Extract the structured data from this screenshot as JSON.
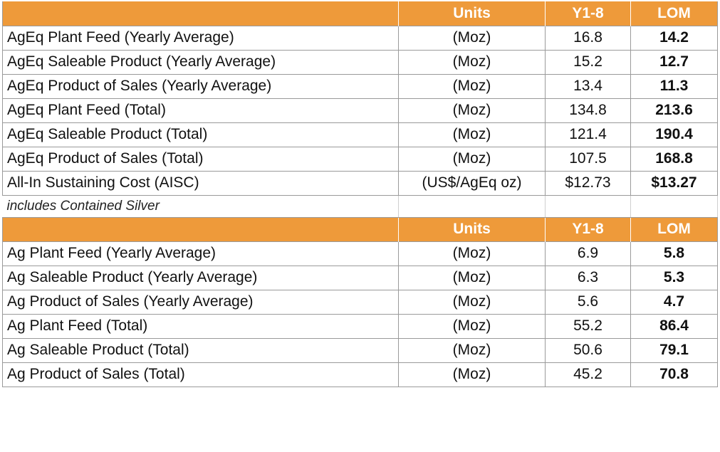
{
  "header": {
    "label": "",
    "units": "Units",
    "y18": "Y1-8",
    "lom": "LOM"
  },
  "table1": {
    "rows": [
      {
        "label": "AgEq Plant Feed (Yearly Average)",
        "units": "(Moz)",
        "y18": "16.8",
        "lom": "14.2"
      },
      {
        "label": "AgEq Saleable Product (Yearly Average)",
        "units": "(Moz)",
        "y18": "15.2",
        "lom": "12.7"
      },
      {
        "label": "AgEq Product of Sales (Yearly Average)",
        "units": "(Moz)",
        "y18": "13.4",
        "lom": "11.3"
      },
      {
        "label": "AgEq Plant Feed (Total)",
        "units": "(Moz)",
        "y18": "134.8",
        "lom": "213.6"
      },
      {
        "label": "AgEq Saleable Product (Total)",
        "units": "(Moz)",
        "y18": "121.4",
        "lom": "190.4"
      },
      {
        "label": "AgEq Product of Sales (Total)",
        "units": "(Moz)",
        "y18": "107.5",
        "lom": "168.8"
      },
      {
        "label": "All-In Sustaining Cost (AISC)",
        "units": "(US$/AgEq oz)",
        "y18": "$12.73",
        "lom": "$13.27"
      }
    ]
  },
  "note": "includes Contained Silver",
  "table2": {
    "rows": [
      {
        "label": "Ag Plant Feed (Yearly Average)",
        "units": "(Moz)",
        "y18": "6.9",
        "lom": "5.8"
      },
      {
        "label": "Ag Saleable Product (Yearly Average)",
        "units": "(Moz)",
        "y18": "6.3",
        "lom": "5.3"
      },
      {
        "label": "Ag Product of Sales (Yearly Average)",
        "units": "(Moz)",
        "y18": "5.6",
        "lom": "4.7"
      },
      {
        "label": "Ag Plant Feed (Total)",
        "units": "(Moz)",
        "y18": "55.2",
        "lom": "86.4"
      },
      {
        "label": "Ag Saleable Product (Total)",
        "units": "(Moz)",
        "y18": "50.6",
        "lom": "79.1"
      },
      {
        "label": "Ag Product of Sales (Total)",
        "units": "(Moz)",
        "y18": "45.2",
        "lom": "70.8"
      }
    ]
  },
  "colors": {
    "header_bg": "#EE9A3A",
    "header_text": "#FFFFFF",
    "grid": "#9A9A9A"
  }
}
